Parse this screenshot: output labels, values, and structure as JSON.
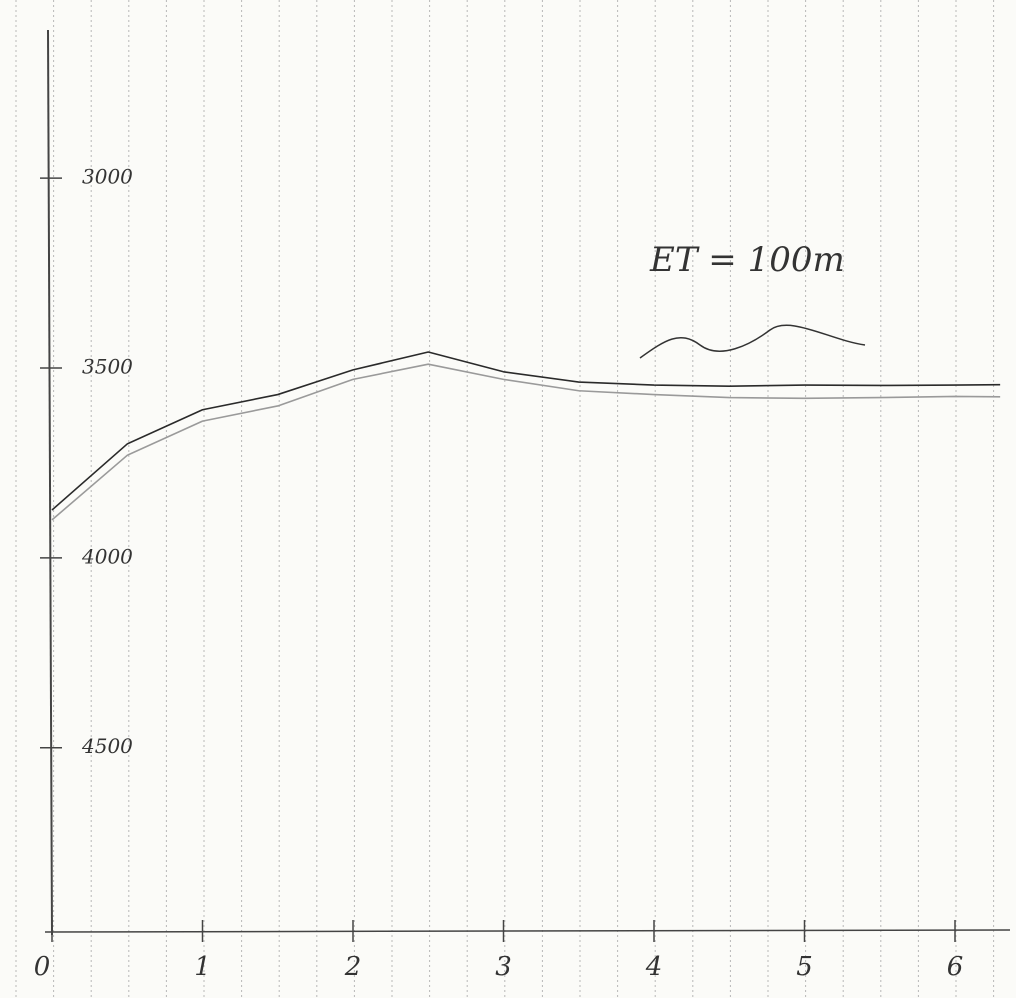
{
  "chart_data": {
    "type": "line",
    "annotation": "ET = 100m",
    "x": [
      0,
      0.5,
      1,
      1.5,
      2,
      2.5,
      3,
      3.5,
      4,
      4.5,
      5,
      5.5,
      6,
      6.3
    ],
    "series": [
      {
        "color": "#2a2a2a",
        "values": [
          3874,
          3700,
          3610,
          3570,
          3505,
          3458,
          3510,
          3537,
          3545,
          3548,
          3545,
          3546,
          3545,
          3544
        ]
      },
      {
        "color": "#9a9a9a",
        "values": [
          3900,
          3730,
          3640,
          3600,
          3530,
          3490,
          3530,
          3560,
          3570,
          3578,
          3580,
          3578,
          3575,
          3576
        ]
      }
    ],
    "xlim": [
      0,
      6.3
    ],
    "xticks": [
      0,
      1,
      2,
      3,
      4,
      5,
      6
    ],
    "ylim": [
      4980,
      2610
    ],
    "yticks": [
      3000,
      3500,
      4000,
      4500
    ]
  }
}
